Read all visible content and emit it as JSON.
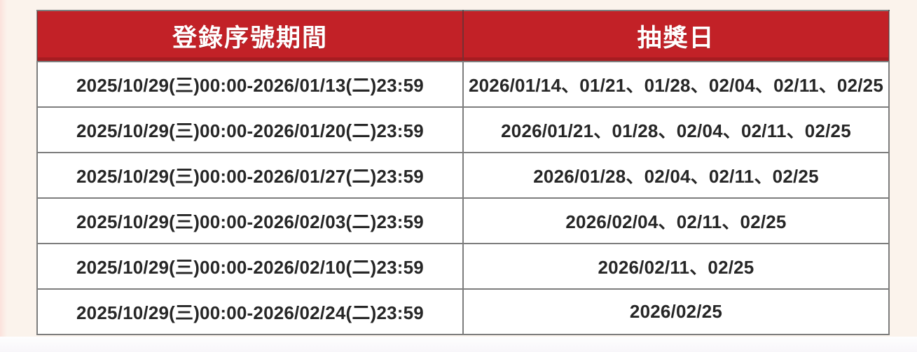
{
  "colors": {
    "page_bg": "#fbf3ec",
    "header_bg": "#c22127",
    "header_text": "#ffffff",
    "cell_bg": "#ffffff",
    "cell_text": "#262626",
    "border": "#7d7d7d"
  },
  "table": {
    "columns": [
      "登錄序號期間",
      "抽獎日"
    ],
    "rows": [
      {
        "period": "2025/10/29(三)00:00-2026/01/13(二)23:59",
        "draw_dates": "2026/01/14、01/21、01/28、02/04、02/11、02/25"
      },
      {
        "period": "2025/10/29(三)00:00-2026/01/20(二)23:59",
        "draw_dates": "2026/01/21、01/28、02/04、02/11、02/25"
      },
      {
        "period": "2025/10/29(三)00:00-2026/01/27(二)23:59",
        "draw_dates": "2026/01/28、02/04、02/11、02/25"
      },
      {
        "period": "2025/10/29(三)00:00-2026/02/03(二)23:59",
        "draw_dates": "2026/02/04、02/11、02/25"
      },
      {
        "period": "2025/10/29(三)00:00-2026/02/10(二)23:59",
        "draw_dates": "2026/02/11、02/25"
      },
      {
        "period": "2025/10/29(三)00:00-2026/02/24(二)23:59",
        "draw_dates": "2026/02/25"
      }
    ]
  }
}
